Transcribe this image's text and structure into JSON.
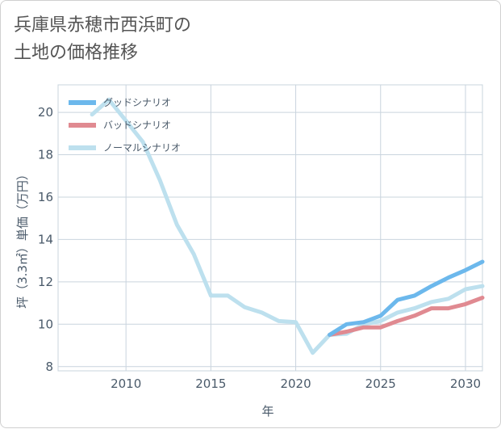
{
  "chart_data": {
    "type": "line",
    "title": "兵庫県赤穂市西浜町の\n土地の価格推移",
    "xlabel": "年",
    "ylabel": "坪（3.3㎡）単価（万円）",
    "xlim": [
      2006,
      2031
    ],
    "ylim": [
      7.8,
      21.3
    ],
    "x_ticks": [
      2010,
      2015,
      2020,
      2025,
      2030
    ],
    "y_ticks": [
      8,
      10,
      12,
      14,
      16,
      18,
      20
    ],
    "grid": true,
    "legend_position": "top-left",
    "series": [
      {
        "name": "グッドシナリオ",
        "color": "#6cb8ec",
        "x": [
          2022,
          2023,
          2024,
          2025,
          2026,
          2027,
          2028,
          2029,
          2030,
          2031
        ],
        "y": [
          9.5,
          10.0,
          10.1,
          10.4,
          11.15,
          11.35,
          11.8,
          12.2,
          12.55,
          12.95
        ]
      },
      {
        "name": "バッドシナリオ",
        "color": "#e08a91",
        "x": [
          2022,
          2023,
          2024,
          2025,
          2026,
          2027,
          2028,
          2029,
          2030,
          2031
        ],
        "y": [
          9.5,
          9.65,
          9.85,
          9.85,
          10.15,
          10.4,
          10.75,
          10.75,
          10.95,
          11.25
        ]
      },
      {
        "name": "ノーマルシナリオ",
        "color": "#bde0ee",
        "x": [
          2008,
          2009,
          2010,
          2011,
          2012,
          2013,
          2014,
          2015,
          2016,
          2017,
          2018,
          2019,
          2020,
          2021,
          2022,
          2023,
          2024,
          2025,
          2026,
          2027,
          2028,
          2029,
          2030,
          2031
        ],
        "y": [
          19.9,
          20.6,
          19.6,
          18.6,
          16.8,
          14.7,
          13.3,
          11.35,
          11.35,
          10.8,
          10.55,
          10.15,
          10.1,
          8.65,
          9.5,
          9.55,
          10.0,
          10.15,
          10.55,
          10.75,
          11.05,
          11.2,
          11.65,
          11.8
        ]
      }
    ]
  }
}
